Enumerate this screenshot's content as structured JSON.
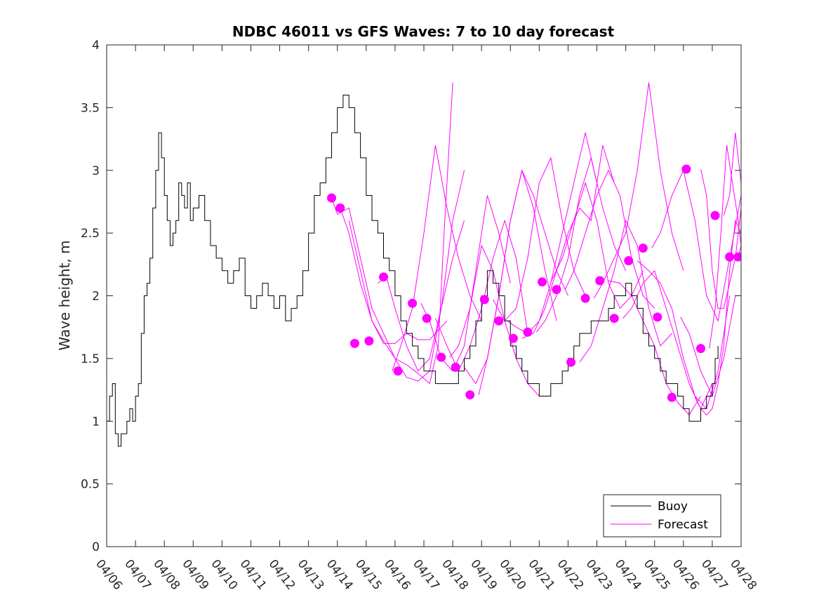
{
  "chart_data": {
    "type": "line",
    "title": "NDBC 46011 vs GFS Waves: 7 to 10 day forecast",
    "xlabel": "",
    "ylabel": "Wave height, m",
    "xlim": [
      "04/06",
      "04/28"
    ],
    "ylim": [
      0,
      4
    ],
    "y_ticks": [
      "0",
      "0.5",
      "1",
      "1.5",
      "2",
      "2.5",
      "3",
      "3.5",
      "4"
    ],
    "x_ticks": [
      "04/06",
      "04/07",
      "04/08",
      "04/09",
      "04/10",
      "04/11",
      "04/12",
      "04/13",
      "04/14",
      "04/15",
      "04/16",
      "04/17",
      "04/18",
      "04/19",
      "04/20",
      "04/21",
      "04/22",
      "04/23",
      "04/24",
      "04/25",
      "04/26",
      "04/27",
      "04/28"
    ],
    "grid": false,
    "legend": {
      "position": "bottom-right",
      "entries": [
        "Buoy",
        "Forecast"
      ]
    },
    "colors": {
      "buoy": "#000000",
      "forecast": "#ff00ff"
    },
    "series": [
      {
        "name": "Buoy",
        "x_days": [
          0,
          0.1,
          0.2,
          0.3,
          0.4,
          0.5,
          0.6,
          0.7,
          0.8,
          0.9,
          1.0,
          1.1,
          1.2,
          1.3,
          1.4,
          1.5,
          1.6,
          1.7,
          1.8,
          1.9,
          2.0,
          2.1,
          2.2,
          2.3,
          2.4,
          2.5,
          2.6,
          2.7,
          2.8,
          2.9,
          3.0,
          3.2,
          3.4,
          3.6,
          3.8,
          4.0,
          4.2,
          4.4,
          4.6,
          4.8,
          5.0,
          5.2,
          5.4,
          5.6,
          5.8,
          6.0,
          6.2,
          6.4,
          6.6,
          6.8,
          7.0,
          7.2,
          7.4,
          7.6,
          7.8,
          8.0,
          8.2,
          8.4,
          8.6,
          8.8,
          9.0,
          9.2,
          9.4,
          9.6,
          9.8,
          10.0,
          10.2,
          10.4,
          10.6,
          10.8,
          11.0,
          11.2,
          11.4,
          11.6,
          11.8,
          12.0,
          12.2,
          12.4,
          12.6,
          12.8,
          13.0,
          13.2,
          13.4,
          13.6,
          13.8,
          14.0,
          14.2,
          14.4,
          14.6,
          14.8,
          15.0,
          15.2,
          15.4,
          15.6,
          15.8,
          16.0,
          16.2,
          16.4,
          16.6,
          16.8,
          17.0,
          17.2,
          17.4,
          17.6,
          17.8,
          18.0,
          18.2,
          18.4,
          18.6,
          18.8,
          19.0,
          19.2,
          19.4,
          19.6,
          19.8,
          20.0,
          20.2,
          20.4,
          20.6,
          20.8,
          21.0,
          21.1,
          21.2
        ],
        "values": [
          1.0,
          1.2,
          1.3,
          0.9,
          0.8,
          0.9,
          0.9,
          1.0,
          1.1,
          1.0,
          1.2,
          1.3,
          1.7,
          2.0,
          2.1,
          2.3,
          2.7,
          3.0,
          3.3,
          3.1,
          2.8,
          2.6,
          2.4,
          2.5,
          2.6,
          2.9,
          2.8,
          2.7,
          2.9,
          2.6,
          2.7,
          2.8,
          2.6,
          2.4,
          2.3,
          2.2,
          2.1,
          2.2,
          2.3,
          2.0,
          1.9,
          2.0,
          2.1,
          2.0,
          1.9,
          2.0,
          1.8,
          1.9,
          2.0,
          2.2,
          2.5,
          2.8,
          2.9,
          3.1,
          3.3,
          3.5,
          3.6,
          3.5,
          3.3,
          3.1,
          2.8,
          2.6,
          2.5,
          2.3,
          2.2,
          2.0,
          1.8,
          1.7,
          1.6,
          1.5,
          1.4,
          1.4,
          1.3,
          1.3,
          1.3,
          1.3,
          1.4,
          1.5,
          1.6,
          1.8,
          2.0,
          2.2,
          2.1,
          2.0,
          1.8,
          1.6,
          1.5,
          1.4,
          1.3,
          1.3,
          1.2,
          1.2,
          1.3,
          1.3,
          1.4,
          1.5,
          1.6,
          1.7,
          1.7,
          1.8,
          1.8,
          1.8,
          1.9,
          2.0,
          2.0,
          2.1,
          2.0,
          1.9,
          1.7,
          1.6,
          1.5,
          1.4,
          1.3,
          1.3,
          1.2,
          1.1,
          1.0,
          1.0,
          1.1,
          1.2,
          1.3,
          1.5,
          1.6
        ]
      },
      {
        "name": "Forecast",
        "lines": [
          {
            "x_days": [
              7.8,
              8.0,
              8.4,
              8.8,
              9.2,
              9.6,
              10.0,
              10.4,
              10.8,
              11.2,
              11.5,
              11.7,
              12.0
            ],
            "values": [
              2.78,
              2.65,
              2.7,
              2.3,
              1.9,
              1.7,
              1.5,
              1.45,
              1.38,
              1.3,
              1.6,
              2.5,
              3.7
            ]
          },
          {
            "x_days": [
              8.1,
              8.4,
              8.8,
              9.2,
              9.6,
              10.0,
              10.4,
              10.8,
              11.2,
              11.6,
              11.8
            ],
            "values": [
              2.7,
              2.5,
              2.1,
              1.8,
              1.62,
              1.62,
              1.7,
              1.65,
              1.65,
              1.75,
              1.8
            ]
          },
          {
            "x_days": [
              8.4,
              8.8,
              9.2,
              9.6,
              10.0,
              10.4,
              10.8,
              11.2,
              11.6,
              12.0,
              12.4
            ],
            "values": [
              2.6,
              2.2,
              1.8,
              1.64,
              1.5,
              1.35,
              1.32,
              1.4,
              1.9,
              2.3,
              2.6
            ]
          },
          {
            "x_days": [
              9.4,
              9.7,
              10.0,
              10.4,
              10.8,
              11.2,
              11.6,
              12.0,
              12.4
            ],
            "values": [
              2.1,
              2.15,
              1.9,
              1.6,
              1.4,
              1.5,
              1.9,
              2.6,
              3.0
            ]
          },
          {
            "x_days": [
              9.9,
              10.2,
              10.6,
              11.0,
              11.4,
              11.8,
              12.2,
              12.6,
              13.0
            ],
            "values": [
              1.4,
              1.6,
              1.9,
              2.5,
              3.2,
              2.7,
              2.3,
              2.0,
              1.8
            ]
          },
          {
            "x_days": [
              10.9,
              11.2,
              11.6,
              12.0,
              12.4,
              12.8,
              13.2,
              13.6,
              14.0
            ],
            "values": [
              1.94,
              1.8,
              1.5,
              1.4,
              1.6,
              2.2,
              2.8,
              2.5,
              2.1
            ]
          },
          {
            "x_days": [
              11.4,
              11.8,
              12.2,
              12.6,
              13.0,
              13.4,
              13.8,
              14.2,
              14.6
            ],
            "values": [
              1.82,
              1.6,
              1.4,
              1.6,
              1.9,
              2.3,
              2.6,
              2.3,
              1.7
            ]
          },
          {
            "x_days": [
              11.9,
              12.2,
              12.6,
              13.0,
              13.4,
              13.8,
              14.2,
              14.6,
              15.0
            ],
            "values": [
              1.51,
              1.6,
              1.9,
              2.4,
              2.2,
              1.8,
              1.5,
              1.3,
              1.2
            ]
          },
          {
            "x_days": [
              12.4,
              12.8,
              13.2,
              13.6,
              14.0,
              14.4,
              14.8,
              15.2,
              15.6
            ],
            "values": [
              1.43,
              1.3,
              1.5,
              2.0,
              2.6,
              3.0,
              2.7,
              2.2,
              1.8
            ]
          },
          {
            "x_days": [
              12.9,
              13.2,
              13.6,
              14.0,
              14.4,
              14.8,
              15.2,
              15.6,
              16.0
            ],
            "values": [
              1.21,
              1.5,
              2.0,
              2.6,
              3.0,
              2.8,
              2.5,
              2.2,
              2.0
            ]
          },
          {
            "x_days": [
              13.4,
              13.8,
              14.2,
              14.6,
              15.0,
              15.4,
              15.8,
              16.2,
              16.6
            ],
            "values": [
              1.97,
              1.8,
              1.9,
              2.3,
              2.9,
              3.1,
              2.6,
              2.2,
              2.0
            ]
          },
          {
            "x_days": [
              13.9,
              14.2,
              14.6,
              15.0,
              15.4,
              15.8,
              16.2,
              16.6,
              17.0
            ],
            "values": [
              1.8,
              1.75,
              1.7,
              1.8,
              2.1,
              2.5,
              2.9,
              3.3,
              2.9
            ]
          },
          {
            "x_days": [
              14.4,
              14.8,
              15.2,
              15.6,
              16.0,
              16.4,
              16.8,
              17.2,
              17.6
            ],
            "values": [
              1.66,
              1.7,
              1.9,
              2.2,
              2.5,
              2.7,
              2.6,
              3.2,
              2.9
            ]
          },
          {
            "x_days": [
              14.9,
              15.2,
              15.6,
              16.0,
              16.4,
              16.8,
              17.2,
              17.6,
              18.0
            ],
            "values": [
              1.71,
              1.8,
              2.0,
              2.3,
              2.8,
              3.1,
              2.7,
              2.4,
              2.2
            ]
          },
          {
            "x_days": [
              15.4,
              15.8,
              16.2,
              16.6,
              17.0,
              17.4,
              17.8,
              18.2,
              18.6
            ],
            "values": [
              2.11,
              2.3,
              2.6,
              2.9,
              2.6,
              2.1,
              1.9,
              2.0,
              2.2
            ]
          },
          {
            "x_days": [
              15.9,
              16.2,
              16.6,
              17.0,
              17.4,
              17.8,
              18.2,
              18.6,
              19.0
            ],
            "values": [
              2.05,
              2.2,
              2.5,
              2.8,
              3.0,
              2.8,
              2.3,
              2.0,
              1.9
            ]
          },
          {
            "x_days": [
              16.4,
              16.8,
              17.2,
              17.6,
              18.0,
              18.4,
              18.8,
              19.2,
              19.6
            ],
            "values": [
              1.47,
              1.6,
              1.9,
              2.2,
              2.6,
              2.4,
              1.9,
              1.6,
              1.7
            ]
          },
          {
            "x_days": [
              16.9,
              17.2,
              17.6,
              18.0,
              18.4,
              18.8,
              19.2,
              19.6,
              20.0
            ],
            "values": [
              1.98,
              2.1,
              2.3,
              2.5,
              3.0,
              3.7,
              3.0,
              2.5,
              2.2
            ]
          },
          {
            "x_days": [
              17.4,
              17.8,
              18.2,
              18.6,
              19.0,
              19.4,
              19.8,
              20.2,
              20.6
            ],
            "values": [
              2.12,
              2.1,
              2.0,
              1.8,
              1.6,
              1.3,
              1.15,
              1.05,
              1.2
            ]
          },
          {
            "x_days": [
              17.9,
              18.2,
              18.6,
              19.0,
              19.4,
              19.8,
              20.2,
              20.6,
              21.0
            ],
            "values": [
              1.82,
              1.9,
              2.1,
              2.2,
              1.9,
              1.6,
              1.3,
              1.1,
              1.3
            ]
          },
          {
            "x_days": [
              18.4,
              18.8,
              19.2,
              19.6,
              20.0,
              20.4,
              20.8,
              21.2,
              21.6
            ],
            "values": [
              2.28,
              2.2,
              2.1,
              1.9,
              1.5,
              1.2,
              1.1,
              1.4,
              2.0
            ]
          },
          {
            "x_days": [
              18.9,
              19.2,
              19.6,
              20.0,
              20.4,
              20.8,
              21.2,
              21.6,
              22.0
            ],
            "values": [
              2.38,
              2.5,
              2.8,
              3.0,
              2.6,
              2.0,
              1.8,
              2.3,
              2.8
            ]
          },
          {
            "x_days": [
              19.9,
              20.2,
              20.6,
              21.0,
              21.4,
              21.8,
              22.0
            ],
            "values": [
              1.83,
              1.7,
              1.4,
              1.2,
              1.5,
              2.0,
              2.0
            ]
          },
          {
            "x_days": [
              20.4,
              20.6,
              20.8,
              21.0,
              21.2,
              21.4,
              21.6,
              21.8,
              22.0
            ],
            "values": [
              1.19,
              1.1,
              1.05,
              1.1,
              1.3,
              1.6,
              2.2,
              2.6,
              2.5
            ]
          },
          {
            "x_days": [
              20.6,
              20.8,
              21.0,
              21.2,
              21.4,
              21.6,
              21.8,
              22.0
            ],
            "values": [
              3.01,
              2.8,
              2.2,
              1.9,
              1.9,
              2.1,
              2.3,
              2.7
            ]
          },
          {
            "x_days": [
              20.9,
              21.1,
              21.3,
              21.5,
              21.7,
              21.9,
              22.0
            ],
            "values": [
              1.58,
              1.9,
              2.5,
              3.2,
              2.9,
              2.6,
              2.4
            ]
          },
          {
            "x_days": [
              21.4,
              21.6,
              21.8,
              22.0
            ],
            "values": [
              2.64,
              2.8,
              3.3,
              2.9
            ]
          },
          {
            "x_days": [
              21.9,
              22.0
            ],
            "values": [
              2.31,
              2.4
            ]
          }
        ],
        "markers": {
          "x_days": [
            7.8,
            8.1,
            8.6,
            9.1,
            9.6,
            10.1,
            10.6,
            11.1,
            11.6,
            12.1,
            12.6,
            13.1,
            13.6,
            14.1,
            14.6,
            15.1,
            15.6,
            16.1,
            16.6,
            17.1,
            17.6,
            18.1,
            18.6,
            19.1,
            19.6,
            20.1,
            20.6,
            21.1,
            21.6,
            21.9
          ],
          "values": [
            2.78,
            2.7,
            1.62,
            1.64,
            2.15,
            1.4,
            1.94,
            1.82,
            1.51,
            1.43,
            1.21,
            1.97,
            1.8,
            1.66,
            1.71,
            2.11,
            2.05,
            1.47,
            1.98,
            2.12,
            1.82,
            2.28,
            2.38,
            1.83,
            1.19,
            3.01,
            1.58,
            2.64,
            2.31,
            2.31
          ]
        }
      }
    ]
  }
}
